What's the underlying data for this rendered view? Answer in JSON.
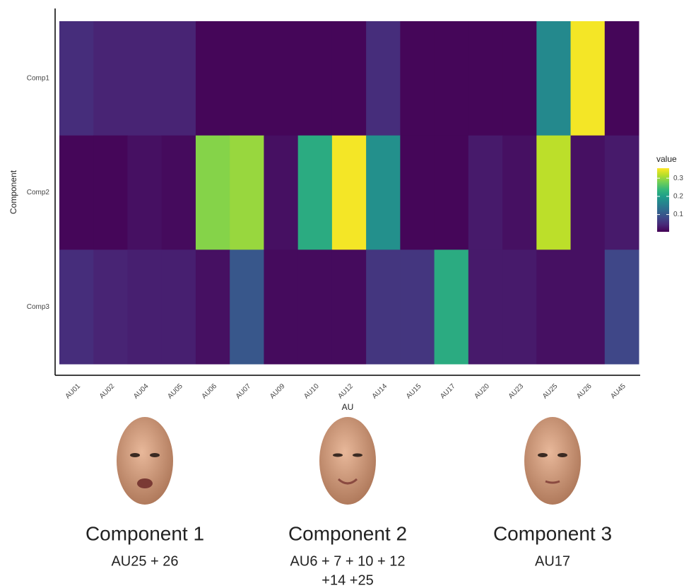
{
  "chart_data": {
    "type": "heatmap",
    "x_label": "AU",
    "y_label": "Component",
    "legend_title": "value",
    "colormap": "viridis",
    "categories": [
      "AU01",
      "AU02",
      "AU04",
      "AU05",
      "AU06",
      "AU07",
      "AU09",
      "AU10",
      "AU12",
      "AU14",
      "AU15",
      "AU17",
      "AU20",
      "AU23",
      "AU25",
      "AU26",
      "AU45"
    ],
    "rows": [
      "Comp1",
      "Comp2",
      "Comp3"
    ],
    "z": [
      [
        0.05,
        0.04,
        0.04,
        0.04,
        0.01,
        0.01,
        0.01,
        0.01,
        0.01,
        0.05,
        0.01,
        0.01,
        0.01,
        0.01,
        0.17,
        0.35,
        0.01
      ],
      [
        0.01,
        0.01,
        0.02,
        0.015,
        0.29,
        0.3,
        0.02,
        0.22,
        0.35,
        0.18,
        0.01,
        0.01,
        0.03,
        0.02,
        0.32,
        0.02,
        0.03
      ],
      [
        0.05,
        0.04,
        0.035,
        0.035,
        0.02,
        0.1,
        0.015,
        0.015,
        0.015,
        0.06,
        0.06,
        0.22,
        0.03,
        0.03,
        0.02,
        0.02,
        0.08
      ]
    ],
    "colorbar_lim": [
      0.005,
      0.355
    ],
    "colorbar_ticks": [
      0.1,
      0.2,
      0.3
    ]
  },
  "captions": [
    {
      "title": "Component 1",
      "lines": [
        "AU25 + 26"
      ]
    },
    {
      "title": "Component 2",
      "lines": [
        "AU6 + 7 + 10 + 12",
        "+14 +25"
      ]
    },
    {
      "title": "Component 3",
      "lines": [
        "AU17"
      ]
    }
  ]
}
